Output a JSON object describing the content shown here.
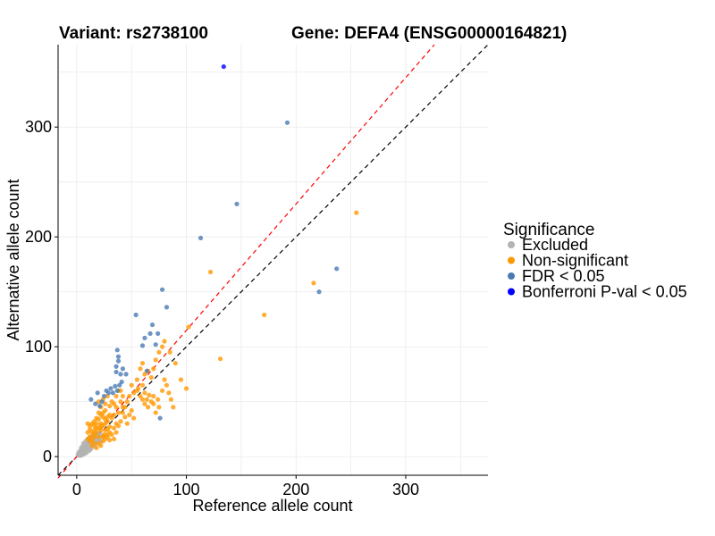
{
  "chart_data": {
    "type": "scatter",
    "title_left": "Variant: rs2738100",
    "title_right": "Gene: DEFA4 (ENSG00000164821)",
    "xlabel": "Reference allele count",
    "ylabel": "Alternative allele count",
    "xlim": [
      -17,
      375
    ],
    "ylim": [
      -17,
      375
    ],
    "xticks": [
      0,
      100,
      200,
      300
    ],
    "yticks": [
      0,
      100,
      200,
      300
    ],
    "grid": true,
    "reference_lines": [
      {
        "name": "identity",
        "slope": 1,
        "intercept": 0,
        "color": "#000000",
        "dash": "dashed"
      },
      {
        "name": "expected-ratio",
        "slope": 1.15,
        "intercept": 0,
        "color": "#ff0000",
        "dash": "dashed"
      }
    ],
    "legend": {
      "title": "Significance",
      "position": "right",
      "entries": [
        {
          "label": "Excluded",
          "color": "#b3b3b3"
        },
        {
          "label": "Non-significant",
          "color": "#ff9900"
        },
        {
          "label": "FDR < 0.05",
          "color": "#4a7ab4"
        },
        {
          "label": "Bonferroni P-val < 0.05",
          "color": "#0000ff"
        }
      ]
    },
    "series": [
      {
        "name": "Excluded",
        "color": "#b3b3b3",
        "points": [
          [
            2,
            1
          ],
          [
            3,
            2
          ],
          [
            4,
            3
          ],
          [
            5,
            2
          ],
          [
            6,
            4
          ],
          [
            7,
            5
          ],
          [
            8,
            6
          ],
          [
            9,
            4
          ],
          [
            10,
            7
          ],
          [
            11,
            8
          ],
          [
            12,
            6
          ],
          [
            4,
            6
          ],
          [
            6,
            8
          ],
          [
            8,
            10
          ],
          [
            10,
            12
          ],
          [
            12,
            14
          ],
          [
            14,
            10
          ],
          [
            15,
            12
          ],
          [
            16,
            9
          ],
          [
            13,
            15
          ],
          [
            5,
            7
          ],
          [
            7,
            3
          ],
          [
            9,
            9
          ],
          [
            11,
            11
          ],
          [
            13,
            9
          ],
          [
            15,
            15
          ],
          [
            17,
            13
          ],
          [
            18,
            16
          ],
          [
            3,
            5
          ],
          [
            5,
            9
          ],
          [
            7,
            11
          ],
          [
            9,
            13
          ],
          [
            11,
            15
          ],
          [
            2,
            4
          ],
          [
            1,
            2
          ],
          [
            3,
            1
          ],
          [
            6,
            6
          ],
          [
            8,
            8
          ],
          [
            10,
            10
          ],
          [
            14,
            14
          ],
          [
            16,
            17
          ],
          [
            18,
            12
          ],
          [
            20,
            16
          ],
          [
            19,
            14
          ],
          [
            12,
            18
          ],
          [
            6,
            12
          ],
          [
            4,
            8
          ],
          [
            8,
            14
          ],
          [
            10,
            16
          ],
          [
            14,
            18
          ],
          [
            16,
            20
          ],
          [
            20,
            20
          ],
          [
            22,
            18
          ],
          [
            17,
            19
          ],
          [
            21,
            14
          ],
          [
            13,
            12
          ],
          [
            15,
            11
          ],
          [
            9,
            7
          ],
          [
            7,
            8
          ],
          [
            5,
            5
          ],
          [
            3,
            3
          ],
          [
            11,
            5
          ],
          [
            13,
            7
          ],
          [
            6,
            2
          ],
          [
            8,
            3
          ],
          [
            4,
            1
          ],
          [
            2,
            2
          ],
          [
            22,
            14
          ],
          [
            24,
            19
          ],
          [
            19,
            21
          ],
          [
            21,
            22
          ],
          [
            15,
            18
          ],
          [
            11,
            13
          ],
          [
            7,
            9
          ],
          [
            9,
            11
          ],
          [
            12,
            10
          ]
        ]
      },
      {
        "name": "Non-significant",
        "color": "#ff9900",
        "points": [
          [
            10,
            22
          ],
          [
            12,
            25
          ],
          [
            14,
            30
          ],
          [
            15,
            20
          ],
          [
            16,
            18
          ],
          [
            18,
            22
          ],
          [
            20,
            26
          ],
          [
            22,
            30
          ],
          [
            24,
            28
          ],
          [
            25,
            20
          ],
          [
            26,
            24
          ],
          [
            28,
            32
          ],
          [
            30,
            27
          ],
          [
            32,
            35
          ],
          [
            18,
            35
          ],
          [
            20,
            40
          ],
          [
            22,
            28
          ],
          [
            24,
            36
          ],
          [
            26,
            42
          ],
          [
            28,
            25
          ],
          [
            30,
            38
          ],
          [
            14,
            15
          ],
          [
            16,
            28
          ],
          [
            18,
            30
          ],
          [
            20,
            18
          ],
          [
            22,
            24
          ],
          [
            24,
            18
          ],
          [
            26,
            30
          ],
          [
            28,
            20
          ],
          [
            30,
            22
          ],
          [
            12,
            18
          ],
          [
            14,
            22
          ],
          [
            16,
            24
          ],
          [
            10,
            16
          ],
          [
            12,
            14
          ],
          [
            34,
            26
          ],
          [
            36,
            30
          ],
          [
            38,
            40
          ],
          [
            40,
            32
          ],
          [
            42,
            45
          ],
          [
            44,
            36
          ],
          [
            46,
            30
          ],
          [
            48,
            38
          ],
          [
            50,
            42
          ],
          [
            52,
            35
          ],
          [
            34,
            38
          ],
          [
            36,
            45
          ],
          [
            38,
            28
          ],
          [
            40,
            50
          ],
          [
            42,
            40
          ],
          [
            20,
            50
          ],
          [
            22,
            45
          ],
          [
            24,
            52
          ],
          [
            26,
            48
          ],
          [
            28,
            55
          ],
          [
            30,
            46
          ],
          [
            32,
            50
          ],
          [
            34,
            48
          ],
          [
            36,
            55
          ],
          [
            38,
            60
          ],
          [
            55,
            60
          ],
          [
            58,
            55
          ],
          [
            60,
            52
          ],
          [
            62,
            48
          ],
          [
            65,
            45
          ],
          [
            68,
            50
          ],
          [
            70,
            55
          ],
          [
            72,
            40
          ],
          [
            75,
            45
          ],
          [
            78,
            60
          ],
          [
            55,
            70
          ],
          [
            50,
            65
          ],
          [
            52,
            58
          ],
          [
            56,
            62
          ],
          [
            48,
            55
          ],
          [
            46,
            50
          ],
          [
            44,
            45
          ],
          [
            42,
            55
          ],
          [
            40,
            60
          ],
          [
            60,
            65
          ],
          [
            62,
            58
          ],
          [
            64,
            52
          ],
          [
            66,
            56
          ],
          [
            70,
            48
          ],
          [
            74,
            52
          ],
          [
            80,
            70
          ],
          [
            82,
            65
          ],
          [
            84,
            58
          ],
          [
            86,
            52
          ],
          [
            88,
            45
          ],
          [
            58,
            80
          ],
          [
            60,
            85
          ],
          [
            62,
            75
          ],
          [
            65,
            78
          ],
          [
            68,
            72
          ],
          [
            70,
            80
          ],
          [
            72,
            88
          ],
          [
            75,
            95
          ],
          [
            78,
            100
          ],
          [
            80,
            105
          ],
          [
            85,
            95
          ],
          [
            90,
            85
          ],
          [
            95,
            70
          ],
          [
            100,
            62
          ],
          [
            102,
            118
          ],
          [
            122,
            168
          ],
          [
            131,
            89
          ],
          [
            171,
            129
          ],
          [
            216,
            158
          ],
          [
            255,
            222
          ],
          [
            20,
            12
          ],
          [
            22,
            10
          ],
          [
            24,
            14
          ],
          [
            26,
            16
          ],
          [
            28,
            18
          ],
          [
            30,
            15
          ],
          [
            18,
            8
          ],
          [
            16,
            12
          ],
          [
            14,
            10
          ],
          [
            32,
            20
          ],
          [
            34,
            16
          ],
          [
            36,
            22
          ],
          [
            12,
            28
          ],
          [
            10,
            30
          ],
          [
            16,
            32
          ],
          [
            18,
            26
          ],
          [
            20,
            34
          ],
          [
            22,
            38
          ],
          [
            24,
            40
          ],
          [
            26,
            34
          ],
          [
            28,
            36
          ]
        ]
      },
      {
        "name": "FDR < 0.05",
        "color": "#4a7ab4",
        "points": [
          [
            13,
            52
          ],
          [
            17,
            48
          ],
          [
            19,
            58
          ],
          [
            21,
            46
          ],
          [
            23,
            50
          ],
          [
            25,
            55
          ],
          [
            27,
            60
          ],
          [
            29,
            58
          ],
          [
            31,
            62
          ],
          [
            33,
            58
          ],
          [
            35,
            64
          ],
          [
            37,
            60
          ],
          [
            39,
            65
          ],
          [
            41,
            68
          ],
          [
            36,
            82
          ],
          [
            38,
            87
          ],
          [
            37,
            97
          ],
          [
            38,
            91
          ],
          [
            36,
            77
          ],
          [
            40,
            75
          ],
          [
            42,
            80
          ],
          [
            45,
            75
          ],
          [
            54,
            129
          ],
          [
            60,
            101
          ],
          [
            62,
            108
          ],
          [
            64,
            78
          ],
          [
            67,
            112
          ],
          [
            69,
            120
          ],
          [
            72,
            102
          ],
          [
            74,
            112
          ],
          [
            78,
            152
          ],
          [
            82,
            136
          ],
          [
            76,
            35
          ],
          [
            113,
            199
          ],
          [
            146,
            230
          ],
          [
            192,
            304
          ],
          [
            221,
            150
          ],
          [
            237,
            171
          ]
        ]
      },
      {
        "name": "Bonferroni P-val < 0.05",
        "color": "#0000ff",
        "points": [
          [
            134,
            355
          ]
        ]
      }
    ]
  }
}
